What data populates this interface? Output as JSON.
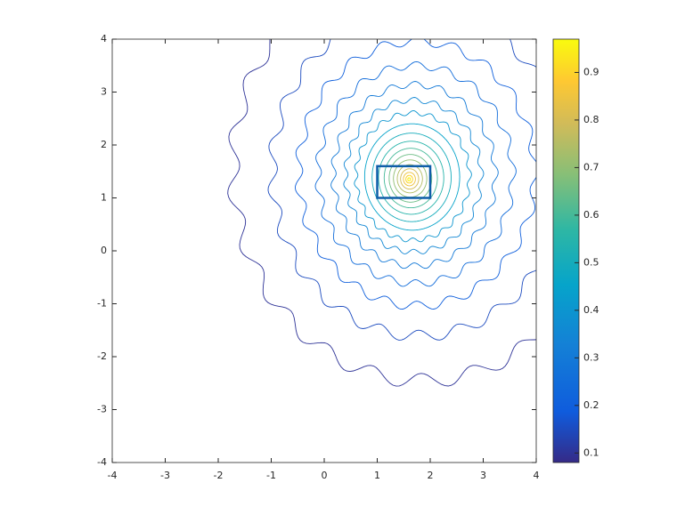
{
  "chart_data": {
    "type": "contour",
    "xlim": [
      -4,
      4
    ],
    "ylim": [
      -4,
      4
    ],
    "xticks": [
      -4,
      -3,
      -2,
      -1,
      0,
      1,
      2,
      3,
      4
    ],
    "yticks": [
      -4,
      -3,
      -2,
      -1,
      0,
      1,
      2,
      3,
      4
    ],
    "levels": [
      0.1,
      0.15,
      0.2,
      0.25,
      0.3,
      0.35,
      0.4,
      0.45,
      0.5,
      0.55,
      0.6,
      0.65,
      0.7,
      0.75,
      0.8,
      0.85,
      0.9,
      0.95
    ],
    "colormap": "parula",
    "clim": [
      0.08,
      0.97
    ],
    "cticks": [
      0.1,
      0.2,
      0.3,
      0.4,
      0.5,
      0.6,
      0.7,
      0.8,
      0.9
    ],
    "rectangle": {
      "x": [
        1,
        2
      ],
      "y": [
        1,
        1.6
      ],
      "color": "#0e5ea8"
    }
  }
}
